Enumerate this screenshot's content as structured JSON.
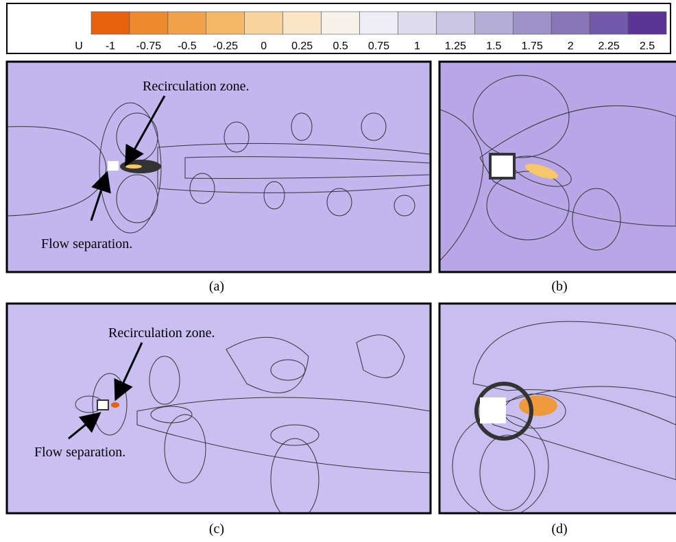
{
  "colorbar": {
    "label": "U",
    "ticks": [
      -1,
      -0.75,
      -0.5,
      -0.25,
      0,
      0.25,
      0.5,
      0.75,
      1,
      1.25,
      1.5,
      1.75,
      2,
      2.25,
      2.5
    ],
    "colors": [
      "#e6620c",
      "#ed8a2d",
      "#f1a149",
      "#f4b868",
      "#f9d39e",
      "#fae6c4",
      "#f6f2ea",
      "#eeedf5",
      "#dedced",
      "#cac5e3",
      "#b4add7",
      "#9e91c8",
      "#8876b9",
      "#7359a9",
      "#5b3596"
    ]
  },
  "panels": [
    {
      "caption": "(a)",
      "annotations": [
        "Recirculation zone.",
        "Flow separation."
      ]
    },
    {
      "caption": "(b)"
    },
    {
      "caption": "(c)",
      "annotations": [
        "Recirculation zone.",
        "Flow separation."
      ]
    },
    {
      "caption": "(d)"
    }
  ]
}
